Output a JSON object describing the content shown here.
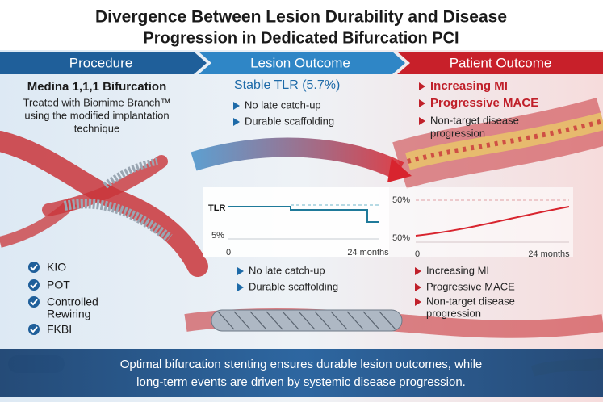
{
  "title": [
    "Divergence Between Lesion Durability and Disease",
    "Progression in Dedicated Bifurcation PCI"
  ],
  "banner": [
    "Procedure",
    "Lesion Outcome",
    "Patient Outcome"
  ],
  "procedure": {
    "heading": "Medina 1,1,1 Bifurcation",
    "text": [
      "Treated with Biomime Branch™",
      "using the modified implantation",
      "technique"
    ],
    "steps": [
      [
        "KIO"
      ],
      [
        "POT"
      ],
      [
        "Controlled",
        "Rewiring"
      ],
      [
        "FKBI"
      ]
    ]
  },
  "lesion": {
    "heading": "Stable TLR (5.7%)",
    "bullets": [
      "No late catch-up",
      "Durable scaffolding"
    ],
    "chart": {
      "y_label": "TLR",
      "y_tick": "5%",
      "x_start": "0",
      "x_end": "24 months"
    },
    "bullets_below": [
      "No late catch-up",
      "Durable scaffolding"
    ]
  },
  "patient": {
    "bullets": [
      [
        "Increasing MI"
      ],
      [
        "Progressive MACE"
      ],
      [
        "Non-target disease",
        "progression"
      ]
    ],
    "chart": {
      "y_tick_top": "50%",
      "y_tick_bottom": "50%",
      "x_start": "0",
      "x_end": "24 months"
    },
    "bullets_below": [
      [
        "Increasing MI"
      ],
      [
        "Progressive MACE"
      ],
      [
        "Non-target disease",
        "progression"
      ]
    ]
  },
  "footer": [
    "Optimal bifurcation stenting ensures durable lesion outcomes, while",
    "long-term events are driven by systemic disease progression."
  ]
}
